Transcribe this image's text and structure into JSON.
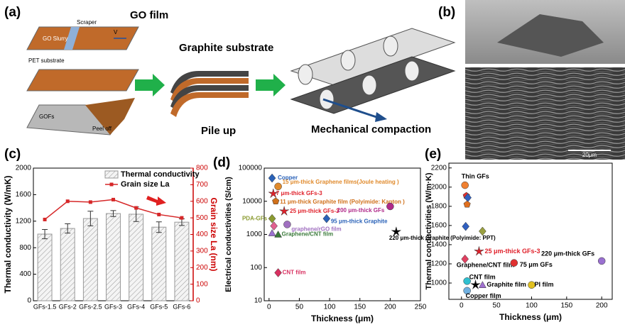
{
  "panel_a": {
    "label": "(a)",
    "go_film": "GO film",
    "scraper": "Scraper",
    "velocity": "V",
    "go_slurry": "GO Slurry",
    "pet_substrate": "PET substrate",
    "gofs": "GOFs",
    "peel_off": "Peel off",
    "graphite_substrate": "Graphite substrate",
    "pile_up": "Pile up",
    "mechanical_compaction": "Mechanical compaction"
  },
  "panel_b": {
    "label": "(b)",
    "scale_bar": "20μm"
  },
  "chart_data": [
    {
      "type": "bar",
      "panel_label": "(c)",
      "categories": [
        "GFs-1.5",
        "GFs-2",
        "GFs-2.5",
        "GFs-3",
        "GFs-4",
        "GFs-5",
        "GFs-6"
      ],
      "series": [
        {
          "name": "Thermal conductivity",
          "type": "bar",
          "color": "#999999",
          "values": [
            1005,
            1090,
            1240,
            1315,
            1305,
            1110,
            1185
          ],
          "errors": [
            70,
            70,
            110,
            45,
            110,
            80,
            50
          ]
        },
        {
          "name": "Grain size La",
          "type": "line",
          "axis": "y2",
          "color": "#d62728",
          "values": [
            490,
            600,
            595,
            610,
            560,
            520,
            500
          ]
        }
      ],
      "ylabel": "Thermal conductivity (W/mK)",
      "y2label": "Grain size La (nm)",
      "ylim": [
        0,
        2000
      ],
      "yticks": [
        0,
        400,
        800,
        1200,
        1600,
        2000
      ],
      "y2lim": [
        0,
        800
      ],
      "y2ticks": [
        0,
        100,
        200,
        300,
        400,
        500,
        600,
        700,
        800
      ]
    },
    {
      "type": "scatter",
      "panel_label": "(d)",
      "xlabel": "Thickness (μm)",
      "ylabel": "Electrical conductivities (S/cm)",
      "log_y": true,
      "xlim": [
        -8,
        250
      ],
      "xticks": [
        0,
        50,
        100,
        150,
        200,
        250
      ],
      "ylim": [
        10,
        100000
      ],
      "yticks": [
        10,
        100,
        1000,
        10000,
        100000
      ],
      "series": [
        {
          "name": "Copper",
          "color": "#2a62b8",
          "marker": "diamond",
          "x": [
            5
          ],
          "values": [
            50000
          ]
        },
        {
          "name": "15 μm-thick Graphene films(Joule heating )",
          "color": "#e08a2c",
          "marker": "circle",
          "x": [
            15
          ],
          "values": [
            28000
          ]
        },
        {
          "name": "7 μm-thick GFs-3",
          "color": "#e0202a",
          "marker": "star",
          "x": [
            7
          ],
          "values": [
            17000
          ]
        },
        {
          "name": "11 μm-thick Graphite film (Polyimide: Kapton )",
          "color": "#d0701a",
          "marker": "pentagon",
          "x": [
            11
          ],
          "values": [
            10000
          ]
        },
        {
          "name": "25 μm-thick GFs-3",
          "color": "#e0202a",
          "marker": "star",
          "x": [
            25
          ],
          "values": [
            5000
          ]
        },
        {
          "name": "PDA-GFs",
          "color": "#8a9a30",
          "marker": "diamond",
          "x": [
            5
          ],
          "values": [
            3000
          ]
        },
        {
          "name": "200 μm-thick GFs",
          "color": "#b02a8a",
          "marker": "circle",
          "x": [
            200
          ],
          "values": [
            7000
          ]
        },
        {
          "name": "95 μm-thick Graphite",
          "color": "#2a62b8",
          "marker": "diamond",
          "x": [
            95
          ],
          "values": [
            3000
          ]
        },
        {
          "name": "graphene/rGO film",
          "color": "#a070c0",
          "marker": "circle",
          "x": [
            30
          ],
          "values": [
            2000
          ]
        },
        {
          "name": "Graphene/CNT film",
          "color": "#3a7a3a",
          "marker": "triangle",
          "x": [
            15
          ],
          "values": [
            1000
          ]
        },
        {
          "name": "220 μm-thick Graphite (Polyimide: PPT)",
          "color": "#000000",
          "marker": "star",
          "x": [
            210
          ],
          "values": [
            1200
          ]
        },
        {
          "name": "CNT film",
          "color": "#d83060",
          "marker": "diamond",
          "x": [
            15
          ],
          "values": [
            70
          ]
        },
        {
          "color": "#e06090",
          "marker": "diamond",
          "x": [
            8
          ],
          "values": [
            1800
          ]
        },
        {
          "color": "#9a70d0",
          "marker": "triangle",
          "x": [
            5
          ],
          "values": [
            1100
          ]
        }
      ]
    },
    {
      "type": "scatter",
      "panel_label": "(e)",
      "xlabel": "Thickness (μm)",
      "ylabel": "Thermal conductivities (W/m·K)",
      "xlim": [
        -18,
        215
      ],
      "xticks": [
        0,
        50,
        100,
        150,
        200
      ],
      "ylim": [
        830,
        2250
      ],
      "yticks": [
        1000,
        1200,
        1400,
        1600,
        1800,
        2000,
        2200
      ],
      "series": [
        {
          "name": "Thin GFs",
          "color": "#f08030",
          "marker": "circle",
          "x": [
            5
          ],
          "values": [
            2020
          ]
        },
        {
          "color": "#e03030",
          "marker": "pentagon",
          "x": [
            7
          ],
          "values": [
            1910
          ]
        },
        {
          "color": "#3060c0",
          "marker": "diamond",
          "x": [
            9
          ],
          "values": [
            1890
          ]
        },
        {
          "color": "#e07020",
          "marker": "pentagon",
          "x": [
            8
          ],
          "values": [
            1820
          ]
        },
        {
          "color": "#3060c0",
          "marker": "diamond",
          "x": [
            6
          ],
          "values": [
            1590
          ]
        },
        {
          "color": "#9aa040",
          "marker": "diamond",
          "x": [
            30
          ],
          "values": [
            1540
          ]
        },
        {
          "name": "25 μm-thick GFs-3",
          "color": "#e0202a",
          "marker": "star",
          "x": [
            25
          ],
          "values": [
            1330
          ]
        },
        {
          "name": "Graphene/CNT film",
          "color": "#e04060",
          "marker": "diamond",
          "x": [
            5
          ],
          "values": [
            1250
          ]
        },
        {
          "name": "75 μm GFs",
          "color": "#e03030",
          "marker": "circle",
          "x": [
            75
          ],
          "values": [
            1210
          ]
        },
        {
          "name": "220 μm-thick GFs",
          "color": "#9a70d0",
          "marker": "circle",
          "x": [
            200
          ],
          "values": [
            1230
          ]
        },
        {
          "name": "CNT film",
          "color": "#30c0d0",
          "marker": "circle",
          "x": [
            8
          ],
          "values": [
            1020
          ]
        },
        {
          "color": "#000000",
          "marker": "star",
          "x": [
            20
          ],
          "values": [
            980
          ]
        },
        {
          "name": "Graphite film",
          "color": "#a070d0",
          "marker": "triangle",
          "x": [
            30
          ],
          "values": [
            980
          ]
        },
        {
          "name": "PI film",
          "color": "#e0c020",
          "marker": "circle",
          "x": [
            100
          ],
          "values": [
            980
          ]
        },
        {
          "name": "Copper film",
          "color": "#70b0e0",
          "marker": "circle",
          "x": [
            8
          ],
          "values": [
            920
          ]
        }
      ]
    }
  ]
}
